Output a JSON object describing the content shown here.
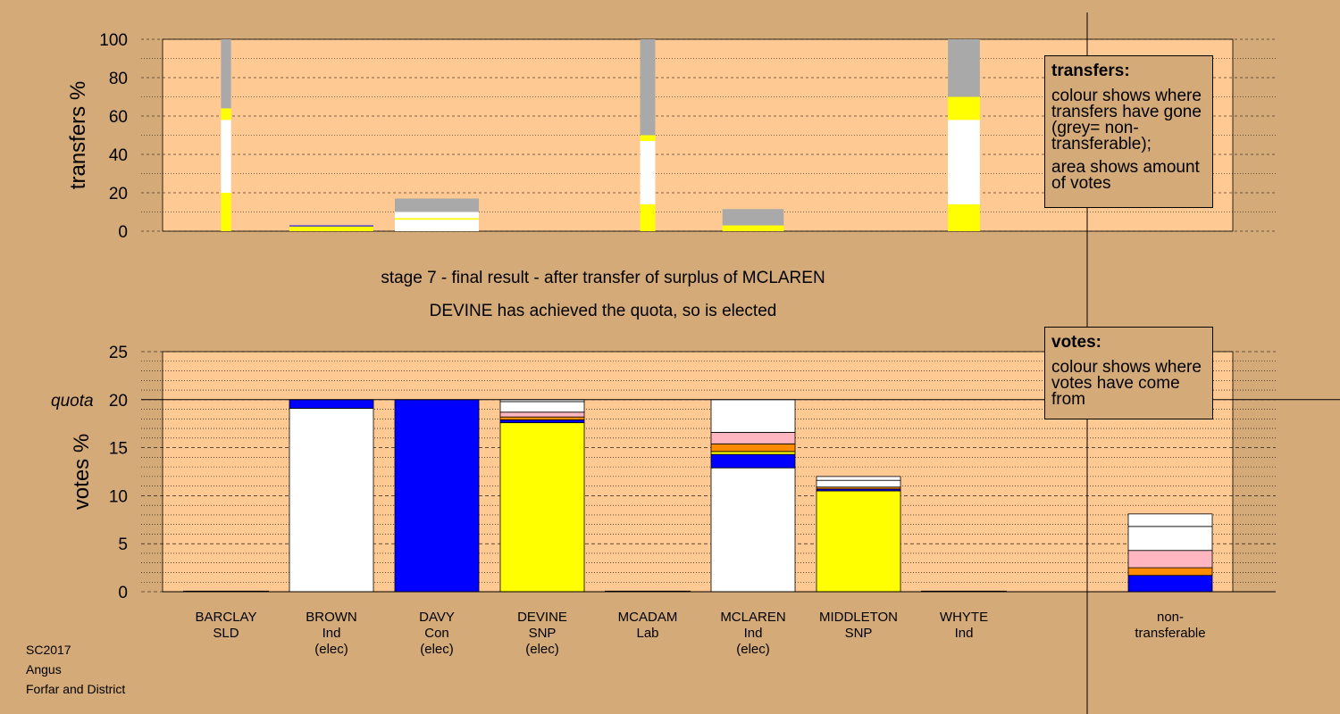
{
  "captions": {
    "stage": "stage 7 - final result - after transfer of surplus of MCLAREN",
    "status": "DEVINE has achieved the quota, so is elected"
  },
  "legends": {
    "transfers": {
      "title": "transfers:",
      "line1": "colour shows where transfers have gone (grey= non-transferable);",
      "line2": "area shows amount of votes"
    },
    "votes": {
      "title": "votes:",
      "line1": "colour shows where votes have come from"
    }
  },
  "footer": [
    "SC2017",
    "Angus",
    "Forfar and District"
  ],
  "colors": {
    "background": "#d4aa78",
    "plot_bg": "#ffc993",
    "SNP": "#ffff00",
    "Con": "#0000ff",
    "Ind": "#ffffff",
    "Lab": "#ff8c00",
    "SLD": "#ffb6c1",
    "nontransferable": "#a9a9a9"
  },
  "chart_data": [
    {
      "type": "bar",
      "title": "",
      "ylabel": "transfers %",
      "ylim": [
        0,
        100
      ],
      "yticks": [
        0,
        20,
        40,
        60,
        80,
        100
      ],
      "grid": true,
      "legend": "right",
      "bars": [
        {
          "candidate": "BARCLAY",
          "width_share": 0.12,
          "segments": [
            {
              "party": "SNP",
              "from": 0,
              "to": 20
            },
            {
              "party": "Ind",
              "from": 20,
              "to": 58
            },
            {
              "party": "SNP",
              "from": 58,
              "to": 64
            },
            {
              "party": "nontransferable",
              "from": 64,
              "to": 100
            }
          ]
        },
        {
          "candidate": "BROWN",
          "width_share": 1.0,
          "segments": [
            {
              "party": "SNP",
              "from": 0,
              "to": 2.5
            },
            {
              "party": "Con",
              "from": 2.5,
              "to": 3
            }
          ]
        },
        {
          "candidate": "DAVY",
          "width_share": 1.0,
          "segments": [
            {
              "party": "Ind",
              "from": 0,
              "to": 6
            },
            {
              "party": "SNP",
              "from": 6,
              "to": 6.8
            },
            {
              "party": "Ind",
              "from": 6.8,
              "to": 10
            },
            {
              "party": "nontransferable",
              "from": 10,
              "to": 17
            }
          ]
        },
        {
          "candidate": "DEVINE",
          "width_share": 0,
          "segments": []
        },
        {
          "candidate": "MCADAM",
          "width_share": 0.18,
          "segments": [
            {
              "party": "SNP",
              "from": 0,
              "to": 14
            },
            {
              "party": "Ind",
              "from": 14,
              "to": 47
            },
            {
              "party": "SNP",
              "from": 47,
              "to": 50
            },
            {
              "party": "nontransferable",
              "from": 50,
              "to": 100
            }
          ]
        },
        {
          "candidate": "MCLAREN",
          "width_share": 0.73,
          "segments": [
            {
              "party": "SNP",
              "from": 0,
              "to": 3
            },
            {
              "party": "nontransferable",
              "from": 3,
              "to": 11.5
            }
          ]
        },
        {
          "candidate": "MIDDLETON",
          "width_share": 0,
          "segments": []
        },
        {
          "candidate": "WHYTE",
          "width_share": 0.38,
          "segments": [
            {
              "party": "SNP",
              "from": 0,
              "to": 14
            },
            {
              "party": "Ind",
              "from": 14,
              "to": 58
            },
            {
              "party": "SNP",
              "from": 58,
              "to": 70
            },
            {
              "party": "nontransferable",
              "from": 70,
              "to": 100
            }
          ]
        }
      ]
    },
    {
      "type": "bar",
      "title": "",
      "ylabel": "votes %",
      "ylim": [
        0,
        25
      ],
      "yticks": [
        0,
        5,
        10,
        15,
        20,
        25
      ],
      "quota": 20,
      "quota_label": "quota",
      "grid": true,
      "legend": "right",
      "categories": [
        {
          "name": "BARCLAY",
          "party": "SLD",
          "status": ""
        },
        {
          "name": "BROWN",
          "party": "Ind",
          "status": "(elec)"
        },
        {
          "name": "DAVY",
          "party": "Con",
          "status": "(elec)"
        },
        {
          "name": "DEVINE",
          "party": "SNP",
          "status": "(elec)"
        },
        {
          "name": "MCADAM",
          "party": "Lab",
          "status": ""
        },
        {
          "name": "MCLAREN",
          "party": "Ind",
          "status": "(elec)"
        },
        {
          "name": "MIDDLETON",
          "party": "SNP",
          "status": ""
        },
        {
          "name": "WHYTE",
          "party": "Ind",
          "status": ""
        }
      ],
      "nontransferable_label": "non-transferable",
      "bars": [
        {
          "candidate": "BARCLAY",
          "segments": []
        },
        {
          "candidate": "BROWN",
          "segments": [
            {
              "party": "Ind",
              "from": 0,
              "to": 19.1
            },
            {
              "party": "Con",
              "from": 19.1,
              "to": 20
            }
          ]
        },
        {
          "candidate": "DAVY",
          "segments": [
            {
              "party": "Con",
              "from": 0,
              "to": 20
            }
          ]
        },
        {
          "candidate": "DEVINE",
          "segments": [
            {
              "party": "SNP",
              "from": 0,
              "to": 17.6
            },
            {
              "party": "Con",
              "from": 17.6,
              "to": 17.9
            },
            {
              "party": "Lab",
              "from": 17.9,
              "to": 18.2
            },
            {
              "party": "SLD",
              "from": 18.2,
              "to": 18.7
            },
            {
              "party": "Ind",
              "from": 18.7,
              "to": 19.8
            },
            {
              "party": "Ind",
              "from": 19.8,
              "to": 20
            }
          ]
        },
        {
          "candidate": "MCADAM",
          "segments": []
        },
        {
          "candidate": "MCLAREN",
          "segments": [
            {
              "party": "Ind",
              "from": 0,
              "to": 12.9
            },
            {
              "party": "Con",
              "from": 12.9,
              "to": 14.3
            },
            {
              "party": "SNP",
              "from": 14.3,
              "to": 14.6
            },
            {
              "party": "Lab",
              "from": 14.6,
              "to": 15.4
            },
            {
              "party": "SLD",
              "from": 15.4,
              "to": 16.6
            },
            {
              "party": "Ind",
              "from": 16.6,
              "to": 20
            }
          ]
        },
        {
          "candidate": "MIDDLETON",
          "segments": [
            {
              "party": "SNP",
              "from": 0,
              "to": 10.5
            },
            {
              "party": "Con",
              "from": 10.5,
              "to": 10.7
            },
            {
              "party": "Lab",
              "from": 10.7,
              "to": 10.9
            },
            {
              "party": "Ind",
              "from": 10.9,
              "to": 11.6
            },
            {
              "party": "Ind",
              "from": 11.6,
              "to": 12
            }
          ]
        },
        {
          "candidate": "WHYTE",
          "segments": []
        },
        {
          "candidate": "non-transferable",
          "segments": [
            {
              "party": "Con",
              "from": 0,
              "to": 1.7
            },
            {
              "party": "Lab",
              "from": 1.7,
              "to": 2.5
            },
            {
              "party": "SLD",
              "from": 2.5,
              "to": 4.3
            },
            {
              "party": "Ind",
              "from": 4.3,
              "to": 6.8
            },
            {
              "party": "Ind",
              "from": 6.8,
              "to": 8.1
            }
          ]
        }
      ]
    }
  ]
}
